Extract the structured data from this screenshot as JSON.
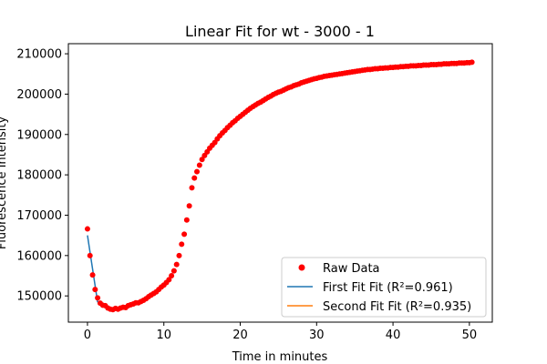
{
  "chart_data": {
    "type": "scatter",
    "title": "Linear Fit for wt - 3000 - 1",
    "xlabel": "Time in minutes",
    "ylabel": "Fluorescence Intensity",
    "xlim": [
      -2.5,
      53
    ],
    "ylim": [
      143500,
      212500
    ],
    "xticks": [
      0,
      10,
      20,
      30,
      40,
      50
    ],
    "yticks": [
      150000,
      160000,
      170000,
      180000,
      190000,
      200000,
      210000
    ],
    "grid": false,
    "legend_position": "lower-right",
    "colors": {
      "raw": "#ff0000",
      "first_fit": "#1f77b4",
      "second_fit": "#ff7f0e"
    },
    "series": [
      {
        "name": "Raw Data",
        "kind": "scatter",
        "points": [
          [
            0.0,
            166600
          ],
          [
            0.33,
            160000
          ],
          [
            0.67,
            155200
          ],
          [
            1.0,
            151600
          ],
          [
            1.33,
            149500
          ],
          [
            1.67,
            148200
          ],
          [
            2.0,
            147700
          ],
          [
            2.33,
            147600
          ],
          [
            2.67,
            147000
          ],
          [
            3.0,
            146700
          ],
          [
            3.33,
            146600
          ],
          [
            3.67,
            146900
          ],
          [
            4.0,
            146700
          ],
          [
            4.33,
            147000
          ],
          [
            4.67,
            147200
          ],
          [
            5.0,
            147100
          ],
          [
            5.33,
            147600
          ],
          [
            5.67,
            147800
          ],
          [
            6.0,
            148000
          ],
          [
            6.33,
            148300
          ],
          [
            6.67,
            148300
          ],
          [
            7.0,
            148600
          ],
          [
            7.33,
            148900
          ],
          [
            7.67,
            149300
          ],
          [
            8.0,
            149800
          ],
          [
            8.33,
            150200
          ],
          [
            8.67,
            150600
          ],
          [
            9.0,
            151000
          ],
          [
            9.33,
            151600
          ],
          [
            9.67,
            152200
          ],
          [
            10.0,
            152700
          ],
          [
            10.33,
            153300
          ],
          [
            10.67,
            154000
          ],
          [
            11.0,
            155000
          ],
          [
            11.33,
            156200
          ],
          [
            11.67,
            157800
          ],
          [
            12.0,
            160000
          ],
          [
            12.33,
            162800
          ],
          [
            12.67,
            165300
          ],
          [
            13.0,
            168800
          ],
          [
            13.33,
            172300
          ],
          [
            13.67,
            176800
          ],
          [
            14.0,
            179200
          ],
          [
            14.33,
            180800
          ],
          [
            14.67,
            182400
          ],
          [
            15.0,
            183800
          ],
          [
            15.33,
            184800
          ],
          [
            15.67,
            185700
          ],
          [
            16.0,
            186600
          ],
          [
            16.33,
            187300
          ],
          [
            16.67,
            188000
          ],
          [
            17.0,
            188900
          ],
          [
            17.33,
            189700
          ],
          [
            17.67,
            190400
          ],
          [
            18.0,
            191000
          ],
          [
            18.33,
            191700
          ],
          [
            18.67,
            192300
          ],
          [
            19.0,
            192900
          ],
          [
            19.33,
            193400
          ],
          [
            19.67,
            194000
          ],
          [
            20.0,
            194500
          ],
          [
            20.33,
            195000
          ],
          [
            20.67,
            195500
          ],
          [
            21.0,
            196000
          ],
          [
            21.33,
            196500
          ],
          [
            21.67,
            196900
          ],
          [
            22.0,
            197300
          ],
          [
            22.33,
            197700
          ],
          [
            22.67,
            198000
          ],
          [
            23.0,
            198400
          ],
          [
            23.33,
            198800
          ],
          [
            23.67,
            199200
          ],
          [
            24.0,
            199500
          ],
          [
            24.33,
            199900
          ],
          [
            24.67,
            200200
          ],
          [
            25.0,
            200500
          ],
          [
            25.33,
            200700
          ],
          [
            25.67,
            201000
          ],
          [
            26.0,
            201300
          ],
          [
            26.33,
            201600
          ],
          [
            26.67,
            201800
          ],
          [
            27.0,
            202100
          ],
          [
            27.33,
            202300
          ],
          [
            27.67,
            202500
          ],
          [
            28.0,
            202800
          ],
          [
            28.33,
            203000
          ],
          [
            28.67,
            203200
          ],
          [
            29.0,
            203400
          ],
          [
            29.33,
            203600
          ],
          [
            29.67,
            203800
          ],
          [
            30.0,
            203900
          ],
          [
            30.33,
            204100
          ],
          [
            30.67,
            204200
          ],
          [
            31.0,
            204400
          ],
          [
            31.33,
            204500
          ],
          [
            31.67,
            204600
          ],
          [
            32.0,
            204700
          ],
          [
            32.33,
            204800
          ],
          [
            32.67,
            204900
          ],
          [
            33.0,
            205000
          ],
          [
            33.33,
            205100
          ],
          [
            33.67,
            205200
          ],
          [
            34.0,
            205300
          ],
          [
            34.33,
            205400
          ],
          [
            34.67,
            205500
          ],
          [
            35.0,
            205600
          ],
          [
            35.33,
            205700
          ],
          [
            35.67,
            205800
          ],
          [
            36.0,
            205900
          ],
          [
            36.33,
            206000
          ],
          [
            36.67,
            206100
          ],
          [
            37.0,
            206100
          ],
          [
            37.33,
            206200
          ],
          [
            37.67,
            206300
          ],
          [
            38.0,
            206300
          ],
          [
            38.33,
            206400
          ],
          [
            38.67,
            206400
          ],
          [
            39.0,
            206500
          ],
          [
            39.33,
            206500
          ],
          [
            39.67,
            206600
          ],
          [
            40.0,
            206600
          ],
          [
            40.33,
            206700
          ],
          [
            40.67,
            206700
          ],
          [
            41.0,
            206800
          ],
          [
            41.33,
            206800
          ],
          [
            41.67,
            206900
          ],
          [
            42.0,
            206900
          ],
          [
            42.33,
            207000
          ],
          [
            42.67,
            207000
          ],
          [
            43.0,
            207000
          ],
          [
            43.33,
            207100
          ],
          [
            43.67,
            207100
          ],
          [
            44.0,
            207200
          ],
          [
            44.33,
            207200
          ],
          [
            44.67,
            207200
          ],
          [
            45.0,
            207300
          ],
          [
            45.33,
            207300
          ],
          [
            45.67,
            207300
          ],
          [
            46.0,
            207400
          ],
          [
            46.33,
            207400
          ],
          [
            46.67,
            207500
          ],
          [
            47.0,
            207500
          ],
          [
            47.33,
            207500
          ],
          [
            47.67,
            207600
          ],
          [
            48.0,
            207600
          ],
          [
            48.33,
            207600
          ],
          [
            48.67,
            207700
          ],
          [
            49.0,
            207700
          ],
          [
            49.33,
            207700
          ],
          [
            49.67,
            207800
          ],
          [
            50.0,
            207800
          ],
          [
            50.33,
            207900
          ]
        ]
      },
      {
        "name": "First Fit Fit (R²=0.961)",
        "kind": "line",
        "points": [
          [
            0.0,
            165000
          ],
          [
            1.33,
            148400
          ]
        ]
      },
      {
        "name": "Second Fit Fit (R²=0.935)",
        "kind": "line",
        "points": [
          [
            3.33,
            146700
          ],
          [
            7.0,
            148700
          ]
        ]
      }
    ]
  }
}
